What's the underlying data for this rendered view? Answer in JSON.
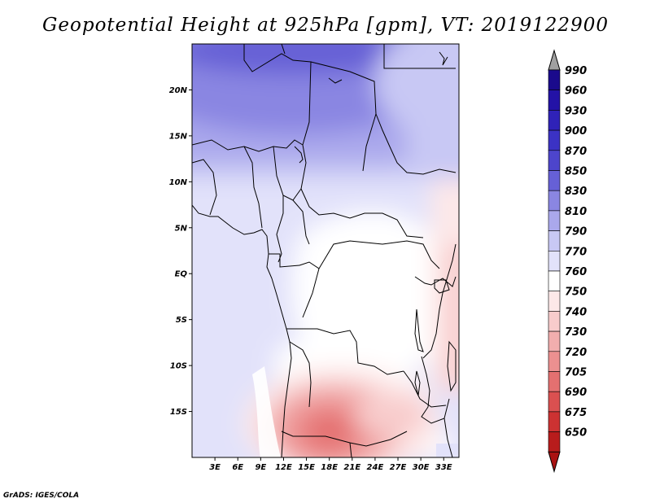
{
  "title": "Geopotential Height at 925hPa [gpm], VT: 2019122900",
  "credit": "GrADS: IGES/COLA",
  "map": {
    "lon_range": [
      0,
      35
    ],
    "lat_range": [
      -20,
      25
    ],
    "lat_ticks": [
      {
        "value": 20,
        "label": "20N"
      },
      {
        "value": 15,
        "label": "15N"
      },
      {
        "value": 10,
        "label": "10N"
      },
      {
        "value": 5,
        "label": "5N"
      },
      {
        "value": 0,
        "label": "EQ"
      },
      {
        "value": -5,
        "label": "5S"
      },
      {
        "value": -10,
        "label": "10S"
      },
      {
        "value": -15,
        "label": "15S"
      }
    ],
    "lon_ticks": [
      {
        "value": 3,
        "label": "3E"
      },
      {
        "value": 6,
        "label": "6E"
      },
      {
        "value": 9,
        "label": "9E"
      },
      {
        "value": 12,
        "label": "12E"
      },
      {
        "value": 15,
        "label": "15E"
      },
      {
        "value": 18,
        "label": "18E"
      },
      {
        "value": 21,
        "label": "21E"
      },
      {
        "value": 24,
        "label": "24E"
      },
      {
        "value": 27,
        "label": "27E"
      },
      {
        "value": 30,
        "label": "30E"
      },
      {
        "value": 33,
        "label": "33E"
      }
    ]
  },
  "colorbar": {
    "levels": [
      {
        "label": "990",
        "color": "#1a0a8c"
      },
      {
        "label": "960",
        "color": "#2312a6"
      },
      {
        "label": "930",
        "color": "#2f22b8"
      },
      {
        "label": "900",
        "color": "#3b32c4"
      },
      {
        "label": "870",
        "color": "#4d45cc"
      },
      {
        "label": "850",
        "color": "#6660d6"
      },
      {
        "label": "830",
        "color": "#8a86e2"
      },
      {
        "label": "810",
        "color": "#aaa8ec"
      },
      {
        "label": "790",
        "color": "#c8c8f4"
      },
      {
        "label": "770",
        "color": "#e2e2fa"
      },
      {
        "label": "760",
        "color": "#ffffff"
      },
      {
        "label": "750",
        "color": "#fde8e8"
      },
      {
        "label": "740",
        "color": "#f8cccc"
      },
      {
        "label": "730",
        "color": "#f2aeae"
      },
      {
        "label": "720",
        "color": "#ec9090"
      },
      {
        "label": "705",
        "color": "#e47070"
      },
      {
        "label": "690",
        "color": "#da5050"
      },
      {
        "label": "675",
        "color": "#cc3232"
      },
      {
        "label": "650",
        "color": "#b81c1c"
      }
    ],
    "top_arrow_color": "#a0a0a0",
    "bottom_arrow_color": "#aa1212"
  }
}
